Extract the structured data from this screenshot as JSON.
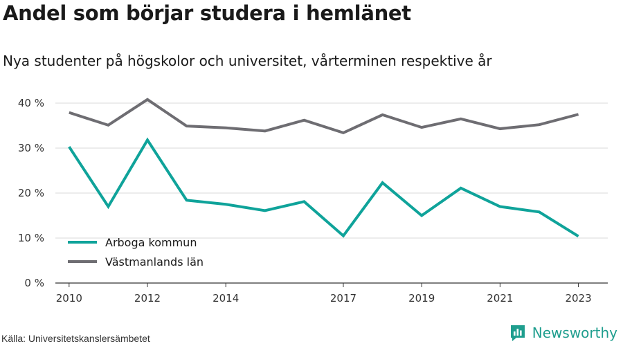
{
  "title": "Andel som börjar studera i hemlänet",
  "subtitle": "Nya studenter på högskolor och universitet, vårterminen respektive år",
  "source": "Källa: Universitetskanslersämbetet",
  "brand": {
    "name": "Newsworthy",
    "icon": "newsworthy-logo-icon",
    "color": "#1f9e8e"
  },
  "chart_data": {
    "type": "line",
    "x": [
      2010,
      2011,
      2012,
      2013,
      2014,
      2015,
      2016,
      2017,
      2018,
      2019,
      2020,
      2021,
      2022,
      2023
    ],
    "x_tick_labels": [
      "2010",
      "2012",
      "2014",
      "2017",
      "2019",
      "2021",
      "2023"
    ],
    "y_tick_labels": [
      "0 %",
      "10 %",
      "20 %",
      "30 %",
      "40 %"
    ],
    "ylim": [
      0,
      40
    ],
    "yticks": [
      0,
      10,
      20,
      30,
      40
    ],
    "grid": true,
    "legend_position": "bottom-left",
    "series": [
      {
        "name": "Arboga kommun",
        "color": "#0fa39a",
        "values": [
          30.3,
          17.0,
          31.8,
          18.4,
          17.5,
          16.1,
          18.1,
          10.5,
          22.3,
          15.0,
          21.1,
          17.0,
          15.8,
          10.4
        ]
      },
      {
        "name": "Västmanlands län",
        "color": "#6e6d72",
        "values": [
          37.9,
          35.1,
          40.8,
          34.9,
          34.5,
          33.8,
          36.2,
          33.4,
          37.4,
          34.6,
          36.5,
          34.3,
          35.2,
          37.5
        ]
      }
    ]
  }
}
